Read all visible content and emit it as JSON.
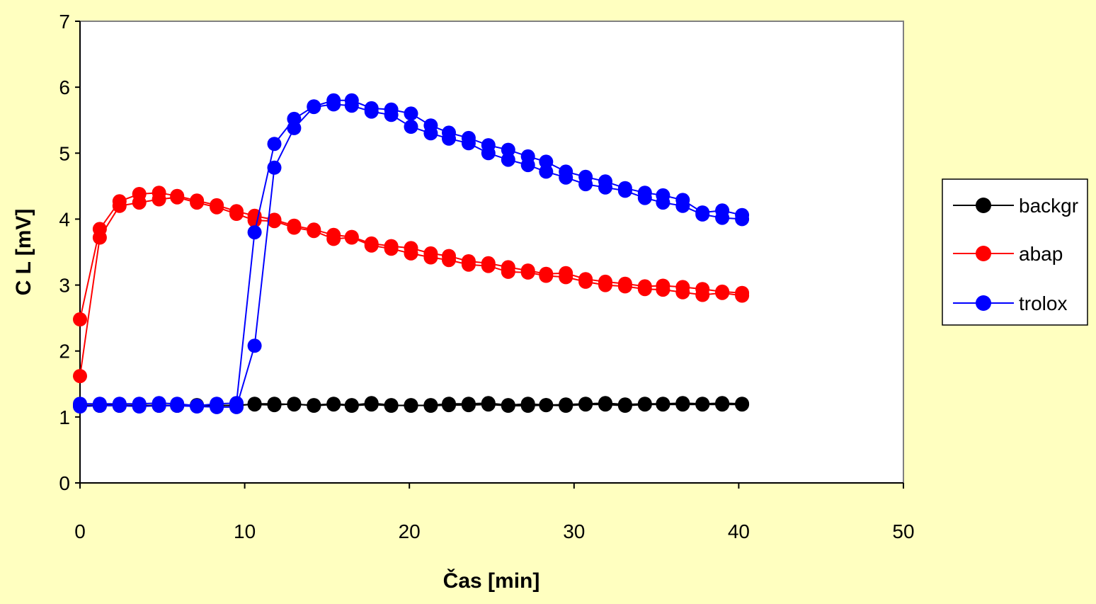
{
  "chart_data": {
    "type": "line",
    "xlabel": "Čas [min]",
    "ylabel": "C L [mV]",
    "xlim": [
      0,
      50
    ],
    "ylim": [
      0,
      7
    ],
    "xticks": [
      0,
      10,
      20,
      30,
      40,
      50
    ],
    "yticks": [
      0,
      1,
      2,
      3,
      4,
      5,
      6,
      7
    ],
    "grid": false,
    "legend_position": "right",
    "series": [
      {
        "name": "backgr",
        "color": "#000000",
        "lines": [
          [
            [
              0,
              1.18
            ],
            [
              1.2,
              1.17
            ],
            [
              2.4,
              1.17
            ],
            [
              3.6,
              1.18
            ],
            [
              4.8,
              1.17
            ],
            [
              5.9,
              1.18
            ],
            [
              7.1,
              1.17
            ],
            [
              8.3,
              1.18
            ],
            [
              9.5,
              1.17
            ],
            [
              10.6,
              1.2
            ],
            [
              11.8,
              1.2
            ],
            [
              13,
              1.19
            ],
            [
              14.2,
              1.18
            ],
            [
              15.4,
              1.2
            ],
            [
              16.5,
              1.18
            ],
            [
              17.7,
              1.21
            ],
            [
              18.9,
              1.18
            ],
            [
              20.1,
              1.17
            ],
            [
              21.3,
              1.18
            ],
            [
              22.4,
              1.2
            ],
            [
              23.6,
              1.2
            ],
            [
              24.8,
              1.21
            ],
            [
              26,
              1.18
            ],
            [
              27.2,
              1.2
            ],
            [
              28.3,
              1.18
            ],
            [
              29.5,
              1.19
            ],
            [
              30.7,
              1.2
            ],
            [
              31.9,
              1.21
            ],
            [
              33.1,
              1.19
            ],
            [
              34.3,
              1.2
            ],
            [
              35.4,
              1.2
            ],
            [
              36.6,
              1.21
            ],
            [
              37.8,
              1.2
            ],
            [
              39,
              1.21
            ],
            [
              40.2,
              1.2
            ]
          ],
          [
            [
              0,
              1.17
            ],
            [
              1.2,
              1.18
            ],
            [
              2.4,
              1.18
            ],
            [
              3.6,
              1.17
            ],
            [
              4.8,
              1.18
            ],
            [
              5.9,
              1.17
            ],
            [
              7.1,
              1.18
            ],
            [
              8.3,
              1.17
            ],
            [
              9.5,
              1.18
            ],
            [
              10.6,
              1.19
            ],
            [
              11.8,
              1.18
            ],
            [
              13,
              1.2
            ],
            [
              14.2,
              1.17
            ],
            [
              15.4,
              1.19
            ],
            [
              16.5,
              1.17
            ],
            [
              17.7,
              1.19
            ],
            [
              18.9,
              1.17
            ],
            [
              20.1,
              1.18
            ],
            [
              21.3,
              1.17
            ],
            [
              22.4,
              1.18
            ],
            [
              23.6,
              1.18
            ],
            [
              24.8,
              1.19
            ],
            [
              26,
              1.17
            ],
            [
              27.2,
              1.17
            ],
            [
              28.3,
              1.18
            ],
            [
              29.5,
              1.17
            ],
            [
              30.7,
              1.19
            ],
            [
              31.9,
              1.19
            ],
            [
              33.1,
              1.17
            ],
            [
              34.3,
              1.19
            ],
            [
              35.4,
              1.19
            ],
            [
              36.6,
              1.19
            ],
            [
              37.8,
              1.19
            ],
            [
              39,
              1.19
            ],
            [
              40.2,
              1.19
            ]
          ]
        ]
      },
      {
        "name": "abap",
        "color": "#FF0000",
        "lines": [
          [
            [
              0,
              2.48
            ],
            [
              1.2,
              3.85
            ],
            [
              2.4,
              4.27
            ],
            [
              3.6,
              4.38
            ],
            [
              4.8,
              4.4
            ],
            [
              5.9,
              4.35
            ],
            [
              7.1,
              4.28
            ],
            [
              8.3,
              4.21
            ],
            [
              9.5,
              4.12
            ],
            [
              10.6,
              4.05
            ],
            [
              11.8,
              3.99
            ],
            [
              13,
              3.9
            ],
            [
              14.2,
              3.84
            ],
            [
              15.4,
              3.76
            ],
            [
              16.5,
              3.73
            ],
            [
              17.7,
              3.63
            ],
            [
              18.9,
              3.59
            ],
            [
              20.1,
              3.56
            ],
            [
              21.3,
              3.48
            ],
            [
              22.4,
              3.44
            ],
            [
              23.6,
              3.36
            ],
            [
              24.8,
              3.33
            ],
            [
              26,
              3.27
            ],
            [
              27.2,
              3.22
            ],
            [
              28.3,
              3.17
            ],
            [
              29.5,
              3.18
            ],
            [
              30.7,
              3.09
            ],
            [
              31.9,
              3.05
            ],
            [
              33.1,
              3.02
            ],
            [
              34.3,
              2.98
            ],
            [
              35.4,
              2.99
            ],
            [
              36.6,
              2.97
            ],
            [
              37.8,
              2.94
            ],
            [
              39,
              2.9
            ],
            [
              40.2,
              2.88
            ]
          ],
          [
            [
              0,
              1.62
            ],
            [
              1.2,
              3.72
            ],
            [
              2.4,
              4.2
            ],
            [
              3.6,
              4.25
            ],
            [
              4.8,
              4.3
            ],
            [
              5.9,
              4.33
            ],
            [
              7.1,
              4.25
            ],
            [
              8.3,
              4.18
            ],
            [
              9.5,
              4.08
            ],
            [
              10.6,
              3.98
            ],
            [
              11.8,
              3.97
            ],
            [
              13,
              3.87
            ],
            [
              14.2,
              3.82
            ],
            [
              15.4,
              3.7
            ],
            [
              16.5,
              3.72
            ],
            [
              17.7,
              3.6
            ],
            [
              18.9,
              3.55
            ],
            [
              20.1,
              3.48
            ],
            [
              21.3,
              3.42
            ],
            [
              22.4,
              3.38
            ],
            [
              23.6,
              3.31
            ],
            [
              24.8,
              3.29
            ],
            [
              26,
              3.2
            ],
            [
              27.2,
              3.19
            ],
            [
              28.3,
              3.14
            ],
            [
              29.5,
              3.12
            ],
            [
              30.7,
              3.05
            ],
            [
              31.9,
              3.0
            ],
            [
              33.1,
              2.98
            ],
            [
              34.3,
              2.94
            ],
            [
              35.4,
              2.93
            ],
            [
              36.6,
              2.89
            ],
            [
              37.8,
              2.85
            ],
            [
              39,
              2.88
            ],
            [
              40.2,
              2.84
            ]
          ]
        ]
      },
      {
        "name": "trolox",
        "color": "#0000FF",
        "lines": [
          [
            [
              0,
              1.2
            ],
            [
              1.2,
              1.2
            ],
            [
              2.4,
              1.2
            ],
            [
              3.6,
              1.2
            ],
            [
              4.8,
              1.21
            ],
            [
              5.9,
              1.2
            ],
            [
              7.1,
              1.17
            ],
            [
              8.3,
              1.2
            ],
            [
              9.5,
              1.21
            ],
            [
              10.6,
              3.8
            ],
            [
              11.8,
              5.14
            ],
            [
              13,
              5.52
            ],
            [
              14.2,
              5.71
            ],
            [
              15.4,
              5.8
            ],
            [
              16.5,
              5.8
            ],
            [
              17.7,
              5.68
            ],
            [
              18.9,
              5.66
            ],
            [
              20.1,
              5.6
            ],
            [
              21.3,
              5.42
            ],
            [
              22.4,
              5.31
            ],
            [
              23.6,
              5.23
            ],
            [
              24.8,
              5.12
            ],
            [
              26,
              5.05
            ],
            [
              27.2,
              4.95
            ],
            [
              28.3,
              4.87
            ],
            [
              29.5,
              4.72
            ],
            [
              30.7,
              4.64
            ],
            [
              31.9,
              4.57
            ],
            [
              33.1,
              4.47
            ],
            [
              34.3,
              4.4
            ],
            [
              35.4,
              4.36
            ],
            [
              36.6,
              4.29
            ],
            [
              37.8,
              4.1
            ],
            [
              39,
              4.13
            ],
            [
              40.2,
              4.06
            ]
          ],
          [
            [
              0,
              1.16
            ],
            [
              1.2,
              1.17
            ],
            [
              2.4,
              1.17
            ],
            [
              3.6,
              1.16
            ],
            [
              4.8,
              1.17
            ],
            [
              5.9,
              1.17
            ],
            [
              7.1,
              1.16
            ],
            [
              8.3,
              1.15
            ],
            [
              9.5,
              1.15
            ],
            [
              10.6,
              2.08
            ],
            [
              11.8,
              4.78
            ],
            [
              13,
              5.38
            ],
            [
              14.2,
              5.7
            ],
            [
              15.4,
              5.74
            ],
            [
              16.5,
              5.72
            ],
            [
              17.7,
              5.63
            ],
            [
              18.9,
              5.58
            ],
            [
              20.1,
              5.4
            ],
            [
              21.3,
              5.3
            ],
            [
              22.4,
              5.22
            ],
            [
              23.6,
              5.15
            ],
            [
              24.8,
              5.0
            ],
            [
              26,
              4.9
            ],
            [
              27.2,
              4.82
            ],
            [
              28.3,
              4.72
            ],
            [
              29.5,
              4.63
            ],
            [
              30.7,
              4.53
            ],
            [
              31.9,
              4.48
            ],
            [
              33.1,
              4.43
            ],
            [
              34.3,
              4.32
            ],
            [
              35.4,
              4.25
            ],
            [
              36.6,
              4.2
            ],
            [
              37.8,
              4.07
            ],
            [
              39,
              4.02
            ],
            [
              40.2,
              4.0
            ]
          ]
        ]
      }
    ]
  },
  "legend": {
    "items": [
      "backgr",
      "abap",
      "trolox"
    ]
  }
}
